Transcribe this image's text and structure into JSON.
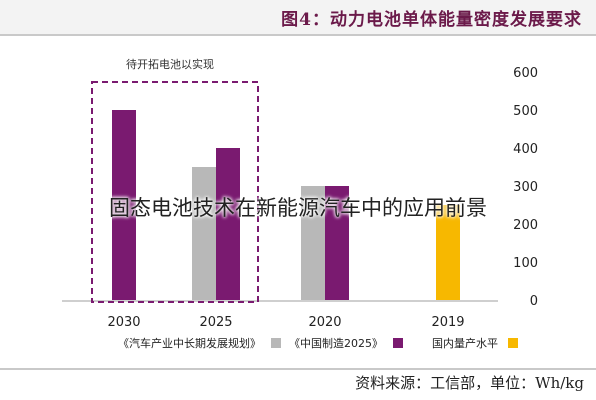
{
  "header": {
    "title": "图4：动力电池单体能量密度发展要求"
  },
  "overlay": {
    "caption": "固态电池技术在新能源汽车中的应用前景"
  },
  "footer": {
    "source": "资料来源：工信部，单位：Wh/kg"
  },
  "chart_data": {
    "type": "bar",
    "categories": [
      "2030",
      "2025",
      "2020",
      "2019"
    ],
    "series": [
      {
        "name": "《汽车产业中长期发展规划》",
        "color": "#b8b8b8",
        "values": [
          null,
          350,
          300,
          null
        ]
      },
      {
        "name": "《中国制造2025》",
        "color": "#7a1a70",
        "values": [
          500,
          400,
          300,
          null
        ]
      },
      {
        "name": "国内量产水平",
        "color": "#f7b800",
        "values": [
          null,
          null,
          null,
          250
        ]
      }
    ],
    "ylim": [
      0,
      600
    ],
    "yticks": [
      "0",
      "100",
      "200",
      "300",
      "400",
      "500",
      "600"
    ],
    "annotation": "待开拓电池以实现",
    "legend_position": "bottom",
    "grid": false
  }
}
